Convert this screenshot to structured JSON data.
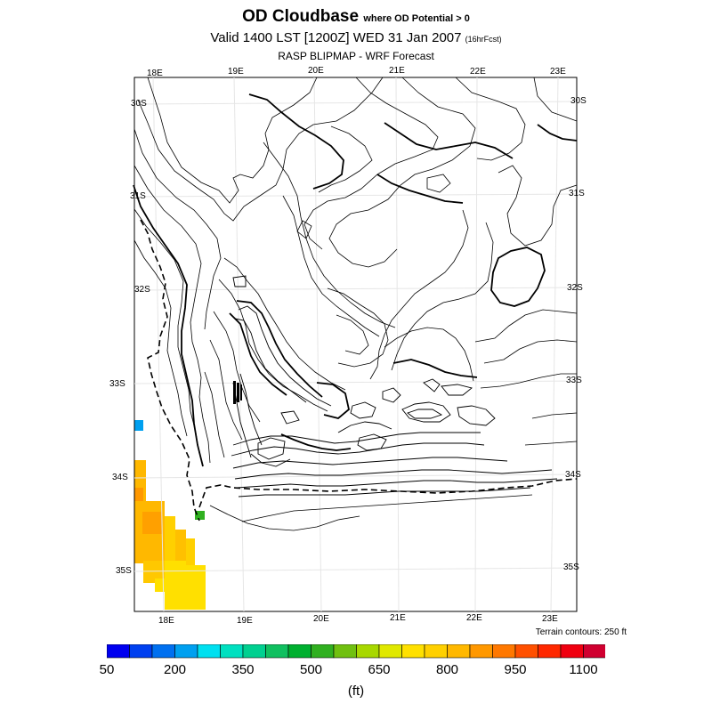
{
  "title": {
    "main": "OD Cloudbase",
    "main_suffix": "where OD Potential > 0",
    "valid": "Valid 1400 LST [1200Z] WED 31 Jan 2007",
    "valid_suffix": "(16hrFcst)",
    "source": "RASP BLIPMAP - WRF Forecast"
  },
  "axes": {
    "lon_top": [
      "18E",
      "19E",
      "20E",
      "21E",
      "22E",
      "23E"
    ],
    "lon_bottom": [
      "18E",
      "19E",
      "20E",
      "21E",
      "22E",
      "23E"
    ],
    "lat_left": [
      "30S",
      "31S",
      "32S",
      "33S",
      "34S",
      "35S"
    ],
    "lat_right": [
      "30S",
      "31S",
      "32S",
      "33S",
      "34S",
      "35S"
    ]
  },
  "terrain_note": "Terrain contours: 250 ft",
  "colorbar": {
    "colors": [
      "#0000f0",
      "#0040f0",
      "#0070f0",
      "#00a0f0",
      "#00e0f0",
      "#00e0c0",
      "#00d090",
      "#10c060",
      "#00b030",
      "#30b020",
      "#70c010",
      "#a8d800",
      "#e0e800",
      "#ffe000",
      "#ffd000",
      "#ffb800",
      "#ff9800",
      "#ff7800",
      "#ff5000",
      "#ff2800",
      "#f00010",
      "#d00030"
    ],
    "labels": [
      "50",
      "200",
      "350",
      "500",
      "650",
      "800",
      "950",
      "1100"
    ],
    "units": "(ft)"
  }
}
